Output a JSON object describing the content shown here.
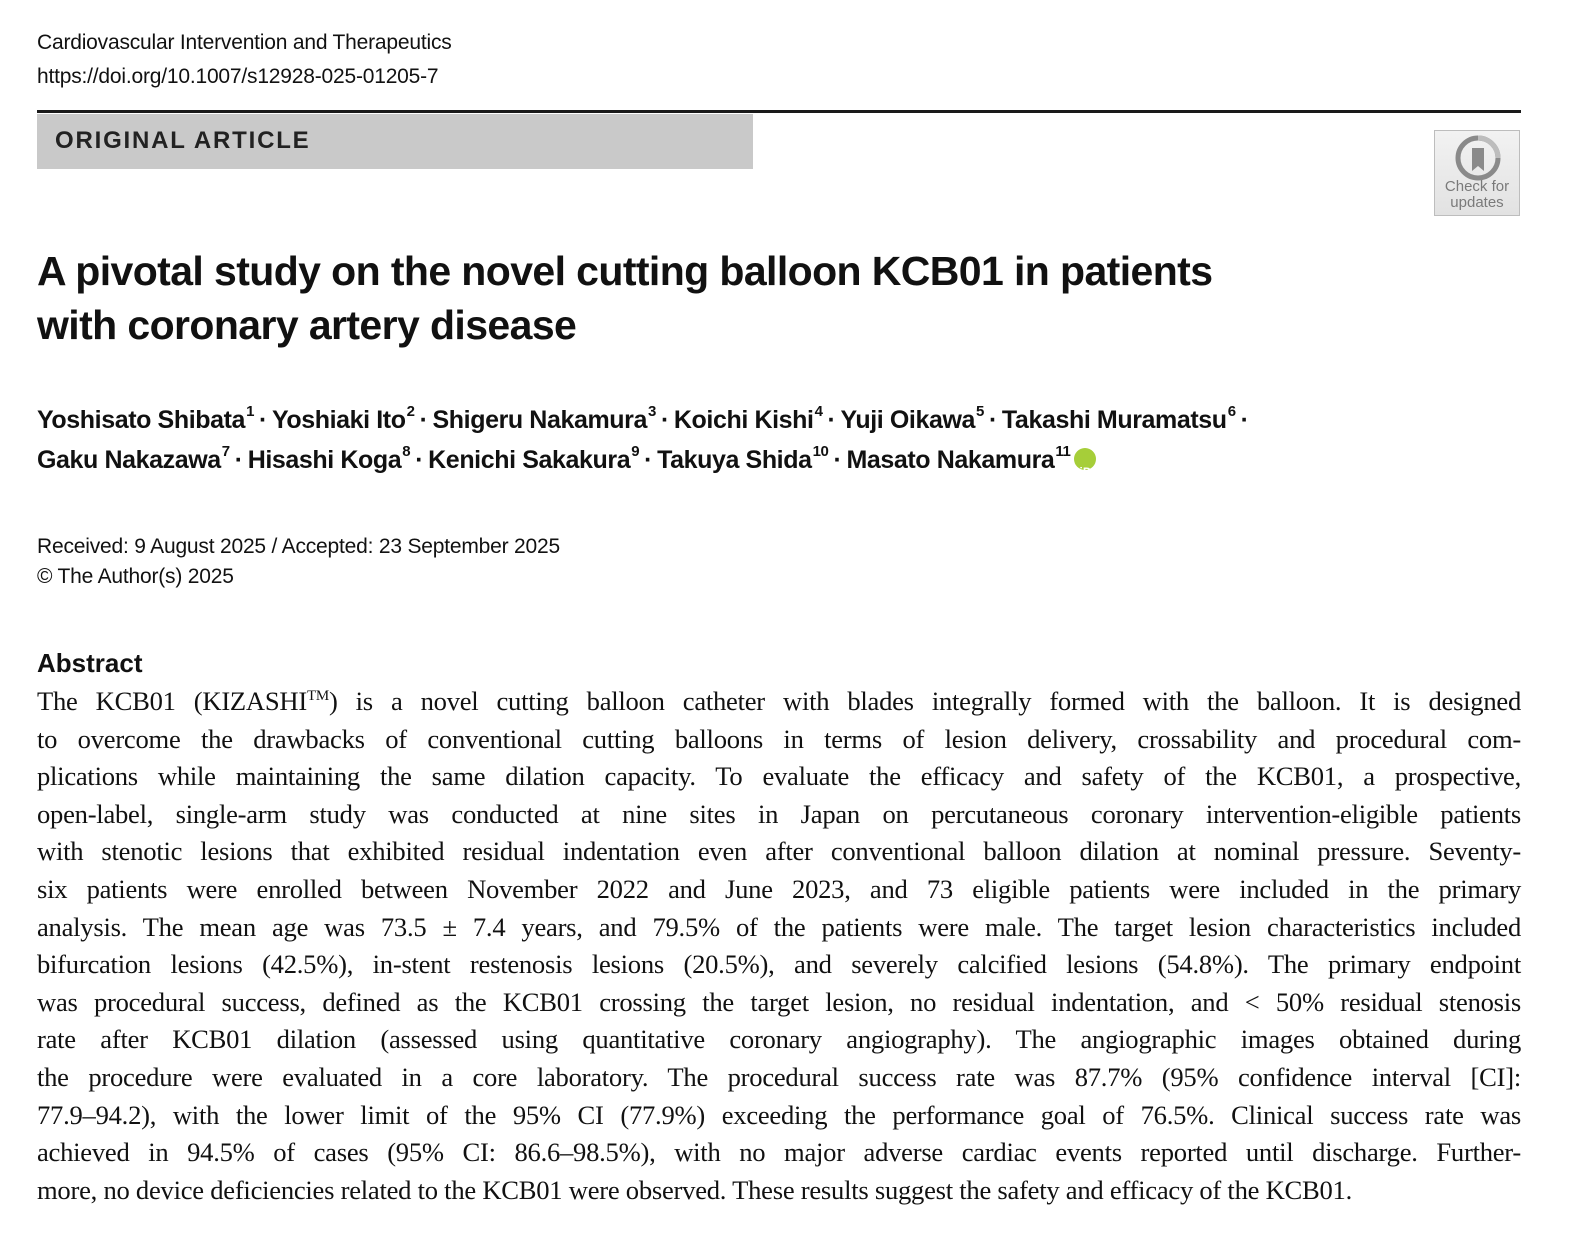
{
  "header": {
    "journal": "Cardiovascular Intervention and Therapeutics",
    "doi": "https://doi.org/10.1007/s12928-025-01205-7"
  },
  "article_type": "ORIGINAL ARTICLE",
  "check_updates": {
    "label": "Check for\nupdates"
  },
  "title": {
    "line1": "A pivotal study on the novel cutting balloon KCB01 in patients",
    "line2": "with coronary artery disease"
  },
  "authors": [
    {
      "name": "Yoshisato Shibata",
      "aff": "1"
    },
    {
      "name": "Yoshiaki Ito",
      "aff": "2"
    },
    {
      "name": "Shigeru Nakamura",
      "aff": "3"
    },
    {
      "name": "Koichi Kishi",
      "aff": "4"
    },
    {
      "name": "Yuji Oikawa",
      "aff": "5"
    },
    {
      "name": "Takashi Muramatsu",
      "aff": "6"
    },
    {
      "name": "Gaku Nakazawa",
      "aff": "7"
    },
    {
      "name": "Hisashi Koga",
      "aff": "8"
    },
    {
      "name": "Kenichi Sakakura",
      "aff": "9"
    },
    {
      "name": "Takuya Shida",
      "aff": "10"
    },
    {
      "name": "Masato Nakamura",
      "aff": "11"
    }
  ],
  "orcid_label": "iD",
  "author_separator": "·",
  "dates": {
    "received": "Received: 9 August 2025 / Accepted: 23 September 2025",
    "copyright": "© The Author(s) 2025"
  },
  "abstract": {
    "heading": "Abstract",
    "tm": "TM",
    "lines": [
      "The KCB01 (KIZASHI",
      ") is a novel cutting balloon catheter with blades integrally formed with the balloon. It is designed",
      "to overcome the drawbacks of conventional cutting balloons in terms of lesion delivery, crossability and procedural com-",
      "plications while maintaining the same dilation capacity. To evaluate the efficacy and safety of the KCB01, a prospective,",
      "open-label, single-arm study was conducted at nine sites in Japan on percutaneous coronary intervention-eligible patients",
      "with stenotic lesions that exhibited residual indentation even after conventional balloon dilation at nominal pressure. Seventy-",
      "six patients were enrolled between November 2022 and June 2023, and 73 eligible patients were included in the primary",
      "analysis. The mean age was 73.5 ± 7.4 years, and 79.5% of the patients were male. The target lesion characteristics included",
      "bifurcation lesions (42.5%), in-stent restenosis lesions (20.5%), and severely calcified lesions (54.8%). The primary endpoint",
      "was procedural success, defined as the KCB01 crossing the target lesion, no residual indentation, and < 50% residual stenosis",
      "rate after KCB01 dilation (assessed using quantitative coronary angiography). The angiographic images obtained during",
      "the procedure were evaluated in a core laboratory. The procedural success rate was 87.7% (95% confidence interval [CI]:",
      "77.9–94.2), with the lower limit of the 95% CI (77.9%) exceeding the performance goal of 76.5%. Clinical success rate was",
      "achieved in 94.5% of cases (95% CI: 86.6–98.5%), with no major adverse cardiac events reported until discharge. Further-",
      "more, no device deficiencies related to the KCB01 were observed. These results suggest the safety and efficacy of the KCB01."
    ]
  }
}
